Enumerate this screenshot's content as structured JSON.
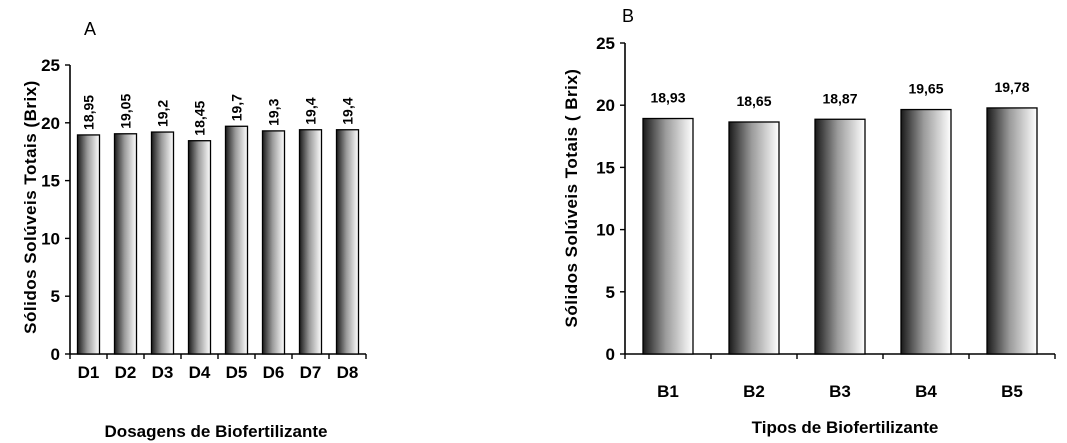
{
  "chart_data": [
    {
      "type": "bar",
      "panel_label": "A",
      "categories": [
        "D1",
        "D2",
        "D3",
        "D4",
        "D5",
        "D6",
        "D7",
        "D8"
      ],
      "values": [
        18.95,
        19.05,
        19.2,
        18.45,
        19.7,
        19.3,
        19.4,
        19.4
      ],
      "data_labels": [
        "18,95",
        "19,05",
        "19,2",
        "18,45",
        "19,7",
        "19,3",
        "19,4",
        "19,4"
      ],
      "xlabel": "Dosagens de Biofertilizante",
      "ylabel": "Sólidos Solúveis Totais (Brix)",
      "ylim": [
        0,
        25
      ],
      "yticks": [
        0,
        5,
        10,
        15,
        20,
        25
      ],
      "grid": false,
      "legend": "none"
    },
    {
      "type": "bar",
      "panel_label": "B",
      "categories": [
        "B1",
        "B2",
        "B3",
        "B4",
        "B5"
      ],
      "values": [
        18.93,
        18.65,
        18.87,
        19.65,
        19.78
      ],
      "data_labels": [
        "18,93",
        "18,65",
        "18,87",
        "19,65",
        "19,78"
      ],
      "xlabel": "Tipos de Biofertilizante",
      "ylabel": "Sólidos Solúveis Totais ( Brix)",
      "ylim": [
        0,
        25
      ],
      "yticks": [
        0,
        5,
        10,
        15,
        20,
        25
      ],
      "grid": false,
      "legend": "none"
    }
  ]
}
